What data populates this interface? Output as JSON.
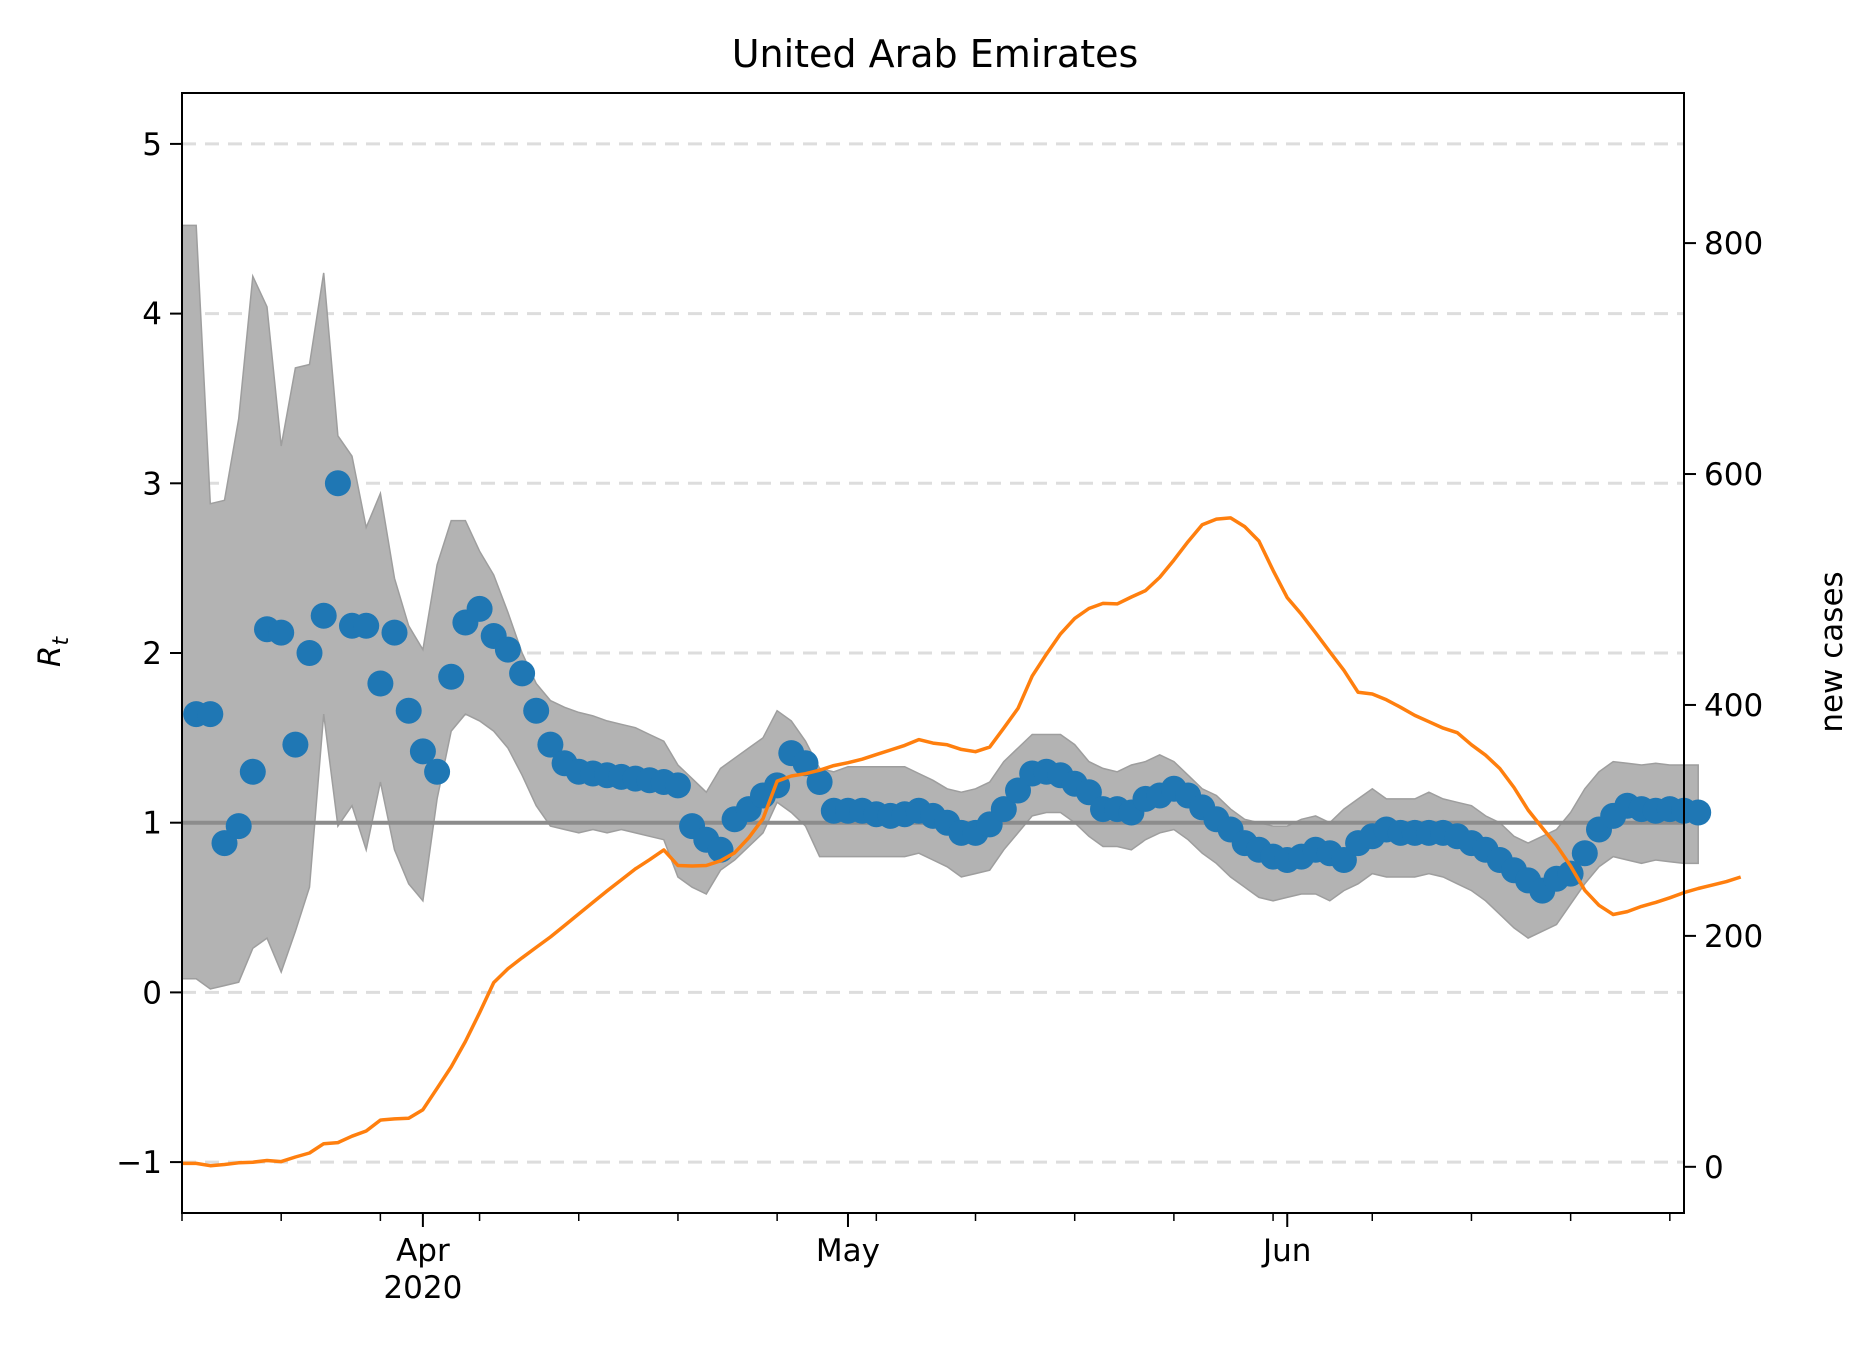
{
  "chart_data": {
    "type": "line",
    "title": "United Arab Emirates",
    "ylabel_left": "R",
    "ylabel_left_sub": "t",
    "ylabel_right": "new cases",
    "x_start": "2020-03-15",
    "x_end": "2020-06-29",
    "x_ticks": [
      {
        "date": "2020-04-01",
        "label": "Apr",
        "year": "2020"
      },
      {
        "date": "2020-05-01",
        "label": "May",
        "year": ""
      },
      {
        "date": "2020-06-01",
        "label": "Jun",
        "year": ""
      }
    ],
    "y_left": {
      "lim": [
        -1.3,
        5.3
      ],
      "ticks": [
        "−1",
        "0",
        "1",
        "2",
        "3",
        "4",
        "5"
      ],
      "tick_values": [
        -1,
        0,
        1,
        2,
        3,
        4,
        5
      ]
    },
    "y_right": {
      "lim": [
        -40,
        930
      ],
      "ticks": [
        "0",
        "200",
        "400",
        "600",
        "800"
      ],
      "tick_values": [
        0,
        200,
        400,
        600,
        800
      ]
    },
    "grid": "horizontal dashed at left-axis ticks",
    "reference_line": 1,
    "colors": {
      "rt": "#1f77b4",
      "cases": "#ff7f0e",
      "band": "#b3b3b3",
      "band_edge": "#9e9e9e",
      "ref": "#8c8c8c",
      "grid": "#dddddd"
    },
    "rt_start": "2020-03-16",
    "rt": [
      1.64,
      1.64,
      0.88,
      0.98,
      1.3,
      2.14,
      2.12,
      1.46,
      2.0,
      2.22,
      3.0,
      2.16,
      2.16,
      1.82,
      2.12,
      1.66,
      1.42,
      1.3,
      1.86,
      2.18,
      2.26,
      2.1,
      2.02,
      1.88,
      1.66,
      1.46,
      1.35,
      1.3,
      1.29,
      1.28,
      1.27,
      1.26,
      1.25,
      1.24,
      1.22,
      0.98,
      0.9,
      0.84,
      1.02,
      1.08,
      1.16,
      1.22,
      1.41,
      1.35,
      1.24,
      1.07,
      1.07,
      1.07,
      1.05,
      1.04,
      1.05,
      1.07,
      1.04,
      1.0,
      0.94,
      0.94,
      0.99,
      1.08,
      1.19,
      1.29,
      1.3,
      1.28,
      1.23,
      1.18,
      1.08,
      1.08,
      1.06,
      1.14,
      1.16,
      1.2,
      1.16,
      1.09,
      1.02,
      0.96,
      0.88,
      0.84,
      0.8,
      0.78,
      0.8,
      0.84,
      0.82,
      0.78,
      0.88,
      0.92,
      0.96,
      0.94,
      0.94,
      0.94,
      0.94,
      0.92,
      0.88,
      0.84,
      0.78,
      0.72,
      0.66,
      0.6,
      0.67,
      0.7,
      0.82,
      0.96,
      1.04,
      1.1,
      1.08,
      1.07,
      1.08,
      1.07,
      1.06
    ],
    "band_start": "2020-03-15",
    "band_upper": [
      4.52,
      4.52,
      2.88,
      2.9,
      3.38,
      4.22,
      4.04,
      3.22,
      3.68,
      3.7,
      4.24,
      3.28,
      3.16,
      2.74,
      2.94,
      2.44,
      2.16,
      2.02,
      2.52,
      2.78,
      2.78,
      2.6,
      2.46,
      2.24,
      2.0,
      1.82,
      1.72,
      1.68,
      1.65,
      1.63,
      1.6,
      1.58,
      1.56,
      1.52,
      1.48,
      1.34,
      1.26,
      1.18,
      1.32,
      1.38,
      1.44,
      1.5,
      1.66,
      1.6,
      1.48,
      1.32,
      1.3,
      1.33,
      1.33,
      1.33,
      1.33,
      1.33,
      1.29,
      1.25,
      1.2,
      1.18,
      1.2,
      1.24,
      1.36,
      1.44,
      1.52,
      1.52,
      1.52,
      1.46,
      1.36,
      1.32,
      1.3,
      1.34,
      1.36,
      1.4,
      1.36,
      1.28,
      1.2,
      1.16,
      1.08,
      1.02,
      1.0,
      0.98,
      0.98,
      1.02,
      1.04,
      1.0,
      1.08,
      1.14,
      1.2,
      1.14,
      1.14,
      1.14,
      1.18,
      1.14,
      1.12,
      1.1,
      1.04,
      1.0,
      0.92,
      0.88,
      0.92,
      0.96,
      1.06,
      1.2,
      1.3,
      1.36,
      1.35,
      1.34,
      1.35,
      1.34,
      1.34,
      1.34
    ],
    "band_lower": [
      0.08,
      0.08,
      0.02,
      0.04,
      0.06,
      0.26,
      0.32,
      0.12,
      0.36,
      0.62,
      1.64,
      0.98,
      1.1,
      0.84,
      1.24,
      0.84,
      0.64,
      0.54,
      1.14,
      1.54,
      1.64,
      1.6,
      1.54,
      1.44,
      1.28,
      1.1,
      0.98,
      0.96,
      0.94,
      0.96,
      0.94,
      0.96,
      0.94,
      0.92,
      0.9,
      0.68,
      0.62,
      0.58,
      0.72,
      0.78,
      0.86,
      0.94,
      1.12,
      1.06,
      0.98,
      0.8,
      0.8,
      0.8,
      0.8,
      0.8,
      0.8,
      0.8,
      0.82,
      0.78,
      0.74,
      0.68,
      0.7,
      0.72,
      0.84,
      0.94,
      1.04,
      1.06,
      1.06,
      1.0,
      0.92,
      0.86,
      0.86,
      0.84,
      0.9,
      0.94,
      0.96,
      0.9,
      0.82,
      0.76,
      0.68,
      0.62,
      0.56,
      0.54,
      0.56,
      0.58,
      0.58,
      0.54,
      0.6,
      0.64,
      0.7,
      0.68,
      0.68,
      0.68,
      0.7,
      0.68,
      0.64,
      0.6,
      0.54,
      0.46,
      0.38,
      0.32,
      0.36,
      0.4,
      0.52,
      0.64,
      0.74,
      0.8,
      0.78,
      0.76,
      0.78,
      0.77,
      0.76,
      0.76
    ],
    "cases_start": "2020-03-15",
    "cases": [
      6,
      6,
      2,
      4,
      7,
      8,
      11,
      9,
      17,
      24,
      40,
      42,
      53,
      62,
      81,
      83,
      84,
      99,
      136,
      173,
      217,
      267,
      319,
      343,
      362,
      380,
      398,
      418,
      438,
      458,
      478,
      497,
      516,
      532,
      549,
      522,
      521,
      522,
      530,
      544,
      570,
      603,
      668,
      677,
      681,
      687,
      695,
      700,
      706,
      714,
      722,
      730,
      740,
      734,
      731,
      723,
      719,
      727,
      760,
      794,
      850,
      888,
      923,
      950,
      967,
      976,
      975,
      987,
      998,
      1021,
      1051,
      1083,
      1112,
      1122,
      1124,
      1109,
      1084,
      1033,
      986,
      957,
      925,
      892,
      860,
      822,
      819,
      809,
      796,
      782,
      771,
      760,
      752,
      731,
      713,
      690,
      657,
      618,
      587,
      557,
      521,
      479,
      453,
      437,
      442,
      451,
      458,
      466,
      475,
      482,
      488,
      494,
      502
    ],
    "cases_note": "cases values are scaled x0.5 relative to right-axis units",
    "cases_scale": 0.5
  }
}
